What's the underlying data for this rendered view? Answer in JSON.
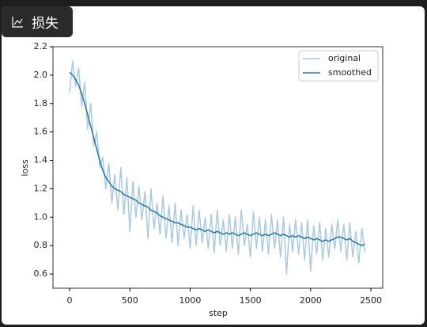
{
  "tab": {
    "label": "损失"
  },
  "chart_data": {
    "type": "line",
    "xlabel": "step",
    "ylabel": "loss",
    "x": [
      0,
      25,
      50,
      75,
      100,
      125,
      150,
      175,
      200,
      225,
      250,
      275,
      300,
      325,
      350,
      375,
      400,
      425,
      450,
      475,
      500,
      525,
      550,
      575,
      600,
      625,
      650,
      675,
      700,
      725,
      750,
      775,
      800,
      825,
      850,
      875,
      900,
      925,
      950,
      975,
      1000,
      1025,
      1050,
      1075,
      1100,
      1125,
      1150,
      1175,
      1200,
      1225,
      1250,
      1275,
      1300,
      1325,
      1350,
      1375,
      1400,
      1425,
      1450,
      1475,
      1500,
      1525,
      1550,
      1575,
      1600,
      1625,
      1650,
      1675,
      1700,
      1725,
      1750,
      1775,
      1800,
      1825,
      1850,
      1875,
      1900,
      1925,
      1950,
      1975,
      2000,
      2025,
      2050,
      2075,
      2100,
      2125,
      2150,
      2175,
      2200,
      2225,
      2250,
      2275,
      2300,
      2325,
      2350,
      2375,
      2400,
      2425,
      2450
    ],
    "series": [
      {
        "name": "original",
        "color": "#a9c9e4",
        "values": [
          1.88,
          2.1,
          1.92,
          2.05,
          1.78,
          1.95,
          1.62,
          1.8,
          1.5,
          1.6,
          1.35,
          1.42,
          1.2,
          1.38,
          1.1,
          1.3,
          1.05,
          1.35,
          1.02,
          1.28,
          0.9,
          1.25,
          1.0,
          1.22,
          0.98,
          1.18,
          0.85,
          1.2,
          0.92,
          1.1,
          0.88,
          1.15,
          0.85,
          1.08,
          0.82,
          1.1,
          0.8,
          1.05,
          0.85,
          1.02,
          0.78,
          1.08,
          0.8,
          1.05,
          0.82,
          1.0,
          0.78,
          1.02,
          0.75,
          1.05,
          0.8,
          0.98,
          0.76,
          1.02,
          0.78,
          1.0,
          0.74,
          1.05,
          0.8,
          0.95,
          0.72,
          1.04,
          0.78,
          1.0,
          0.76,
          0.98,
          0.74,
          1.02,
          0.78,
          0.98,
          0.72,
          1.0,
          0.6,
          0.95,
          0.76,
          0.98,
          0.74,
          0.96,
          0.7,
          0.98,
          0.62,
          0.94,
          0.74,
          0.96,
          0.7,
          0.92,
          0.72,
          0.95,
          0.78,
          0.98,
          0.76,
          0.95,
          0.7,
          0.96,
          0.72,
          0.9,
          0.68,
          0.92,
          0.75
        ]
      },
      {
        "name": "smoothed",
        "color": "#1f77b4",
        "values": [
          2.02,
          2.0,
          1.97,
          1.93,
          1.87,
          1.8,
          1.72,
          1.64,
          1.56,
          1.48,
          1.4,
          1.33,
          1.28,
          1.25,
          1.22,
          1.2,
          1.19,
          1.18,
          1.16,
          1.15,
          1.14,
          1.13,
          1.12,
          1.1,
          1.09,
          1.08,
          1.07,
          1.05,
          1.04,
          1.03,
          1.01,
          1.0,
          0.99,
          0.98,
          0.97,
          0.96,
          0.96,
          0.95,
          0.94,
          0.93,
          0.93,
          0.92,
          0.91,
          0.92,
          0.91,
          0.9,
          0.91,
          0.9,
          0.89,
          0.9,
          0.89,
          0.88,
          0.89,
          0.88,
          0.89,
          0.88,
          0.87,
          0.88,
          0.89,
          0.88,
          0.87,
          0.88,
          0.89,
          0.88,
          0.87,
          0.88,
          0.87,
          0.88,
          0.89,
          0.88,
          0.87,
          0.88,
          0.87,
          0.86,
          0.87,
          0.86,
          0.87,
          0.86,
          0.85,
          0.86,
          0.85,
          0.84,
          0.85,
          0.84,
          0.83,
          0.84,
          0.83,
          0.84,
          0.85,
          0.86,
          0.86,
          0.85,
          0.84,
          0.85,
          0.83,
          0.82,
          0.81,
          0.8,
          0.81
        ]
      }
    ],
    "xlim": [
      -138,
      2598
    ],
    "ylim": [
      0.5,
      2.2
    ],
    "xticks": [
      0,
      500,
      1000,
      1500,
      2000,
      2500
    ],
    "yticks": [
      0.6,
      0.8,
      {
        "value": 1,
        "label": "1.0"
      },
      1.2,
      1.4,
      1.6,
      1.8,
      {
        "value": 2,
        "label": "2.0"
      },
      2.2
    ],
    "legend": "upper right"
  }
}
